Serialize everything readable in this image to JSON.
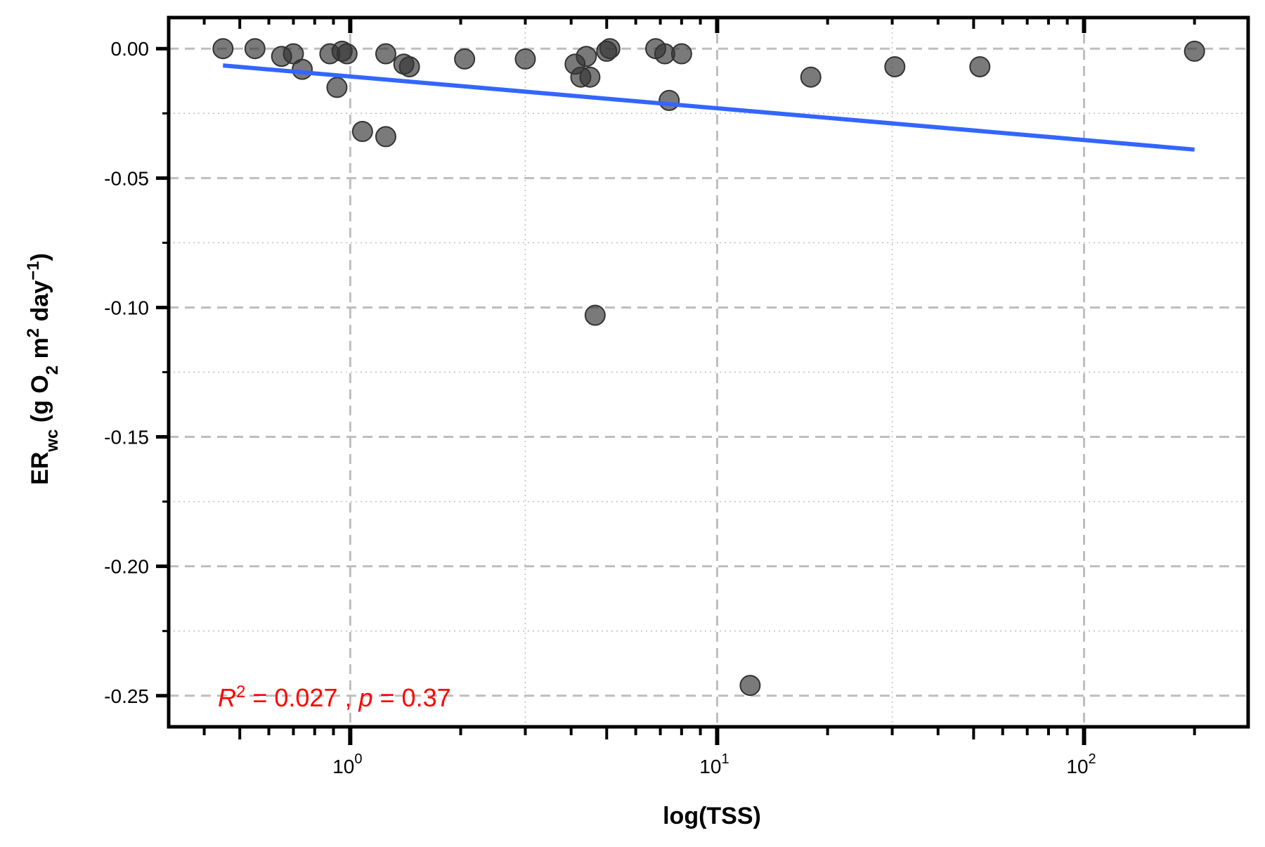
{
  "chart_data": {
    "type": "scatter",
    "title": "",
    "xlabel": "log(TSS)",
    "ylabel": {
      "main": "ER",
      "sub": "wc",
      "rest1": " (g O",
      "sub2": "2",
      "rest2": " m",
      "sup1": "2",
      "rest3": " day",
      "sup2": "−1",
      "rest4": ")"
    },
    "x_scale": "log10",
    "xlim": [
      0.32,
      280
    ],
    "ylim": [
      -0.262,
      0.012
    ],
    "x_ticks": [
      {
        "value": 1,
        "base": "10",
        "exp": "0"
      },
      {
        "value": 10,
        "base": "10",
        "exp": "1"
      },
      {
        "value": 100,
        "base": "10",
        "exp": "2"
      }
    ],
    "y_ticks": [
      {
        "value": 0.0,
        "label": "0.00"
      },
      {
        "value": -0.05,
        "label": "-0.05"
      },
      {
        "value": -0.1,
        "label": "-0.10"
      },
      {
        "value": -0.15,
        "label": "-0.15"
      },
      {
        "value": -0.2,
        "label": "-0.20"
      },
      {
        "value": -0.25,
        "label": "-0.25"
      }
    ],
    "grid": "on",
    "points": [
      {
        "x": 0.45,
        "y": 0.0
      },
      {
        "x": 0.55,
        "y": 0.0
      },
      {
        "x": 0.65,
        "y": -0.003
      },
      {
        "x": 0.7,
        "y": -0.002
      },
      {
        "x": 0.74,
        "y": -0.008
      },
      {
        "x": 0.88,
        "y": -0.002
      },
      {
        "x": 0.92,
        "y": -0.015
      },
      {
        "x": 0.95,
        "y": -0.001
      },
      {
        "x": 0.98,
        "y": -0.002
      },
      {
        "x": 1.08,
        "y": -0.032
      },
      {
        "x": 1.25,
        "y": -0.002
      },
      {
        "x": 1.25,
        "y": -0.034
      },
      {
        "x": 1.4,
        "y": -0.006
      },
      {
        "x": 1.45,
        "y": -0.007
      },
      {
        "x": 2.05,
        "y": -0.004
      },
      {
        "x": 3.0,
        "y": -0.004
      },
      {
        "x": 4.1,
        "y": -0.006
      },
      {
        "x": 4.25,
        "y": -0.011
      },
      {
        "x": 4.4,
        "y": -0.003
      },
      {
        "x": 4.5,
        "y": -0.011
      },
      {
        "x": 4.65,
        "y": -0.103
      },
      {
        "x": 5.0,
        "y": -0.001
      },
      {
        "x": 5.1,
        "y": -0.0
      },
      {
        "x": 6.8,
        "y": 0.0
      },
      {
        "x": 7.2,
        "y": -0.002
      },
      {
        "x": 7.4,
        "y": -0.02
      },
      {
        "x": 8.0,
        "y": -0.002
      },
      {
        "x": 12.3,
        "y": -0.246
      },
      {
        "x": 18.0,
        "y": -0.011
      },
      {
        "x": 30.5,
        "y": -0.007
      },
      {
        "x": 52.0,
        "y": -0.007
      },
      {
        "x": 200.0,
        "y": -0.001
      }
    ],
    "trendline": {
      "x": [
        0.45,
        200
      ],
      "y": [
        -0.0065,
        -0.039
      ],
      "color": "#3366FF"
    },
    "annotation": {
      "r2_label": "R",
      "r2_sup": "2",
      "r2_value": " = 0.027 , ",
      "p_label": "p",
      "p_value": " = 0.37",
      "color": "#ff0000"
    },
    "point_color": "#333333",
    "frame_color": "#000000",
    "grid_color": "#bebebe"
  }
}
